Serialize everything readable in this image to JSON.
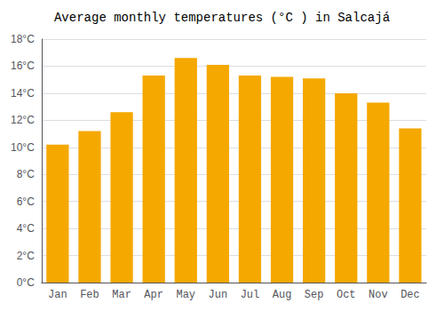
{
  "chart_data": {
    "type": "bar",
    "title": "Average monthly temperatures (°C ) in Salcajá",
    "categories": [
      "Jan",
      "Feb",
      "Mar",
      "Apr",
      "May",
      "Jun",
      "Jul",
      "Aug",
      "Sep",
      "Oct",
      "Nov",
      "Dec"
    ],
    "values": [
      10.2,
      11.2,
      12.6,
      15.3,
      16.6,
      16.1,
      15.3,
      15.2,
      15.1,
      14.0,
      13.3,
      11.4
    ],
    "color": "#F5A800",
    "ylim": [
      0,
      18
    ],
    "yticks": [
      {
        "value": 0,
        "label": "0°C"
      },
      {
        "value": 2,
        "label": "2°C"
      },
      {
        "value": 4,
        "label": "4°C"
      },
      {
        "value": 6,
        "label": "6°C"
      },
      {
        "value": 8,
        "label": "8°C"
      },
      {
        "value": 10,
        "label": "10°C"
      },
      {
        "value": 12,
        "label": "12°C"
      },
      {
        "value": 14,
        "label": "14°C"
      },
      {
        "value": 16,
        "label": "16°C"
      },
      {
        "value": 18,
        "label": "18°C"
      }
    ],
    "grid": true
  }
}
